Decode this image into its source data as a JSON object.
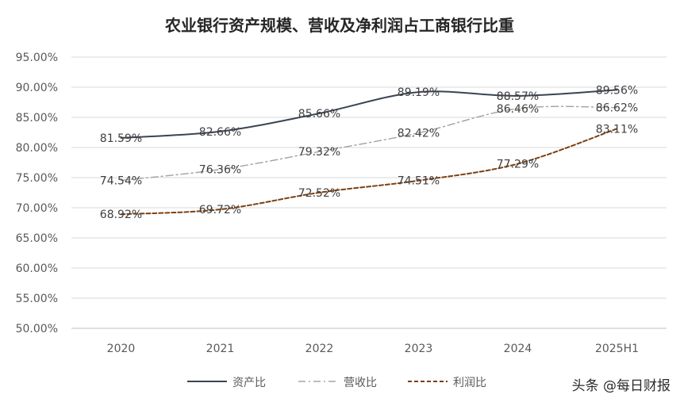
{
  "chart_data": {
    "type": "line",
    "title": "农业银行资产规模、营收及净利润占工商银行比重",
    "categories": [
      "2020",
      "2021",
      "2022",
      "2023",
      "2024",
      "2025H1"
    ],
    "ylim": [
      50,
      95
    ],
    "yticks": [
      50,
      55,
      60,
      65,
      70,
      75,
      80,
      85,
      90,
      95
    ],
    "ytick_labels": [
      "50.00%",
      "55.00%",
      "60.00%",
      "65.00%",
      "70.00%",
      "75.00%",
      "80.00%",
      "85.00%",
      "90.00%",
      "95.00%"
    ],
    "grid": true,
    "legend_position": "bottom",
    "series": [
      {
        "name": "资产比",
        "values": [
          81.59,
          82.66,
          85.66,
          89.19,
          88.57,
          89.56
        ],
        "labels": [
          "81.59%",
          "82.66%",
          "85.66%",
          "89.19%",
          "88.57%",
          "89.56%"
        ],
        "color": "#3b4454",
        "line_style": "solid"
      },
      {
        "name": "营收比",
        "values": [
          74.54,
          76.36,
          79.32,
          82.42,
          86.46,
          86.62
        ],
        "labels": [
          "74.54%",
          "76.36%",
          "79.32%",
          "82.42%",
          "86.46%",
          "86.62%"
        ],
        "color": "#a6a6a6",
        "line_style": "dashdot"
      },
      {
        "name": "利润比",
        "values": [
          68.92,
          69.72,
          72.52,
          74.51,
          77.29,
          83.11
        ],
        "labels": [
          "68.92%",
          "69.72%",
          "72.52%",
          "74.51%",
          "77.29%",
          "83.11%"
        ],
        "color": "#7b3f10",
        "line_style": "dashed"
      }
    ]
  },
  "watermark": {
    "text": "头条 @每日财报"
  }
}
